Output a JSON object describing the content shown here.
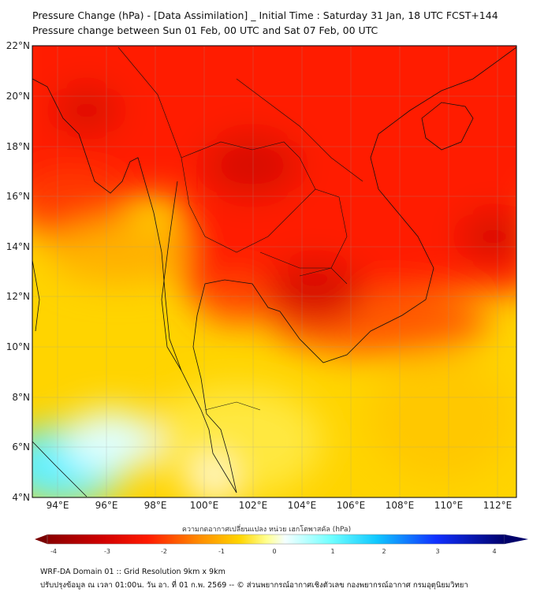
{
  "title": {
    "line1": "Pressure Change (hPa) - [Data Assimilation] _ Initial Time : Saturday 31 Jan, 18 UTC FCST+144",
    "line2": "Pressure change between Sun 01 Feb, 00 UTC and Sat 07 Feb, 00 UTC"
  },
  "map": {
    "lat_ticks": [
      "22°N",
      "20°N",
      "18°N",
      "16°N",
      "14°N",
      "12°N",
      "10°N",
      "8°N",
      "6°N",
      "4°N"
    ],
    "lon_ticks": [
      "94°E",
      "96°E",
      "98°E",
      "100°E",
      "102°E",
      "104°E",
      "106°E",
      "108°E",
      "110°E",
      "112°E"
    ],
    "lat_range": [
      4,
      22
    ],
    "lon_range": [
      93,
      112.8
    ]
  },
  "colorbar": {
    "label": "ความกดอากาศเปลี่ยนแปลง หน่วย เฮกโตพาสคัล (hPa)",
    "ticks": [
      "-4",
      "-3",
      "-2",
      "-1",
      "0",
      "1",
      "2",
      "3",
      "4"
    ],
    "range": [
      -4,
      4
    ],
    "colors": [
      "#7a0000",
      "#d00000",
      "#ff2000",
      "#ff8000",
      "#ffd000",
      "#ffff80",
      "#ffffff",
      "#80ffff",
      "#00c0ff",
      "#0040ff",
      "#000080"
    ]
  },
  "footer": {
    "line1": "WRF-DA Domain 01 :: Grid Resolution 9km x 9km",
    "line2": "ปรับปรุงข้อมูล ณ เวลา 01:00น. วัน อา. ที่ 01 ก.พ. 2569 -- © ส่วนพยากรณ์อากาศเชิงตัวเลข กองพยากรณ์อากาศ กรมอุตุนิยมวิทยา"
  }
}
